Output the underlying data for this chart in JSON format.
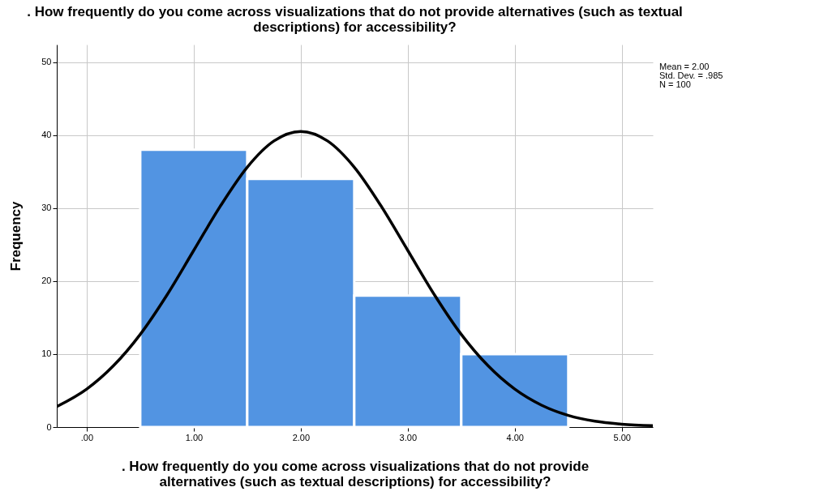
{
  "chart_data": {
    "type": "histogram",
    "title": ". How frequently do you come across visualizations that do not provide alternatives (such as textual descriptions) for accessibility?",
    "xlabel": ". How frequently do you come across visualizations that do not provide alternatives (such as textual descriptions) for accessibility?",
    "ylabel": "Frequency",
    "bins": [
      0.5,
      1.5,
      2.5,
      3.5,
      4.5
    ],
    "values": [
      38,
      34,
      18,
      10
    ],
    "color": "#5294e2",
    "series": [
      {
        "type": "line",
        "color": "#000000",
        "x": [
          -0.28,
          0,
          0.25,
          0.5,
          0.75,
          1,
          1.25,
          1.5,
          1.75,
          2,
          2.25,
          2.5,
          2.75,
          3,
          3.25,
          3.5,
          3.75,
          4,
          4.25,
          4.5,
          4.75,
          5,
          5.29
        ],
        "values": [
          2.8,
          5.2,
          8.4,
          12.7,
          18.1,
          24.2,
          30.3,
          35.6,
          39.2,
          40.5,
          39.2,
          35.6,
          30.3,
          24.2,
          18.1,
          12.7,
          8.4,
          5.2,
          3.0,
          1.6,
          0.8,
          0.4,
          0.2
        ]
      }
    ],
    "xlim": [
      -0.28,
      5.29
    ],
    "xticks": [
      {
        "value": 0,
        "label": ".00"
      },
      {
        "value": 1,
        "label": "1.00"
      },
      {
        "value": 2,
        "label": "2.00"
      },
      {
        "value": 3,
        "label": "3.00"
      },
      {
        "value": 4,
        "label": "4.00"
      },
      {
        "value": 5,
        "label": "5.00"
      }
    ],
    "ylim": [
      0,
      52.4
    ],
    "yticks": [
      0,
      10,
      20,
      30,
      40,
      50
    ],
    "grid": true,
    "annotations": [
      "Mean = 2.00",
      "Std. Dev. = .985",
      "N = 100"
    ]
  }
}
